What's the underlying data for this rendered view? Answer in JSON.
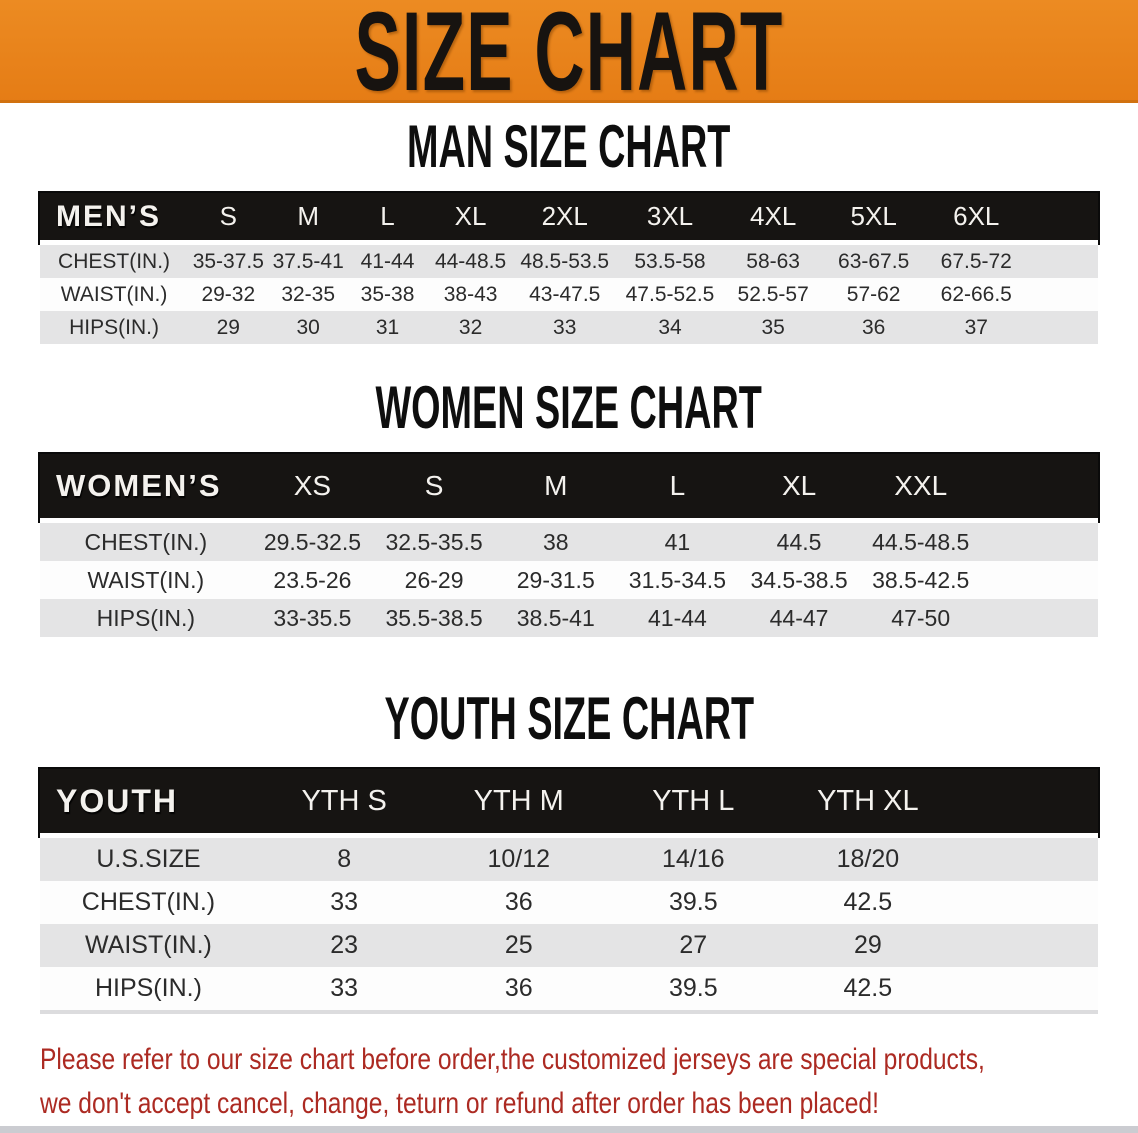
{
  "banner": {
    "title": "SIZE CHART"
  },
  "colors": {
    "banner_orange": "#E8831E",
    "header_bar_black": "#161412",
    "row_stripe_gray": "#E4E4E5",
    "note_red": "#AC2A22"
  },
  "sections": [
    {
      "heading": "MAN SIZE CHART",
      "table": {
        "header": [
          "MEN’S",
          "S",
          "M",
          "L",
          "XL",
          "2XL",
          "3XL",
          "4XL",
          "5XL",
          "6XL"
        ],
        "rows": [
          {
            "label": "CHEST(IN.)",
            "values": [
              "35-37.5",
              "37.5-41",
              "41-44",
              "44-48.5",
              "48.5-53.5",
              "53.5-58",
              "58-63",
              "63-67.5",
              "67.5-72"
            ]
          },
          {
            "label": "WAIST(IN.)",
            "values": [
              "29-32",
              "32-35",
              "35-38",
              "38-43",
              "43-47.5",
              "47.5-52.5",
              "52.5-57",
              "57-62",
              "62-66.5"
            ]
          },
          {
            "label": "HIPS(IN.)",
            "values": [
              "29",
              "30",
              "31",
              "32",
              "33",
              "34",
              "35",
              "36",
              "37"
            ]
          }
        ]
      }
    },
    {
      "heading": "WOMEN SIZE CHART",
      "table": {
        "header": [
          "WOMEN’S",
          "XS",
          "S",
          "M",
          "L",
          "XL",
          "XXL"
        ],
        "rows": [
          {
            "label": "CHEST(IN.)",
            "values": [
              "29.5-32.5",
              "32.5-35.5",
              "38",
              "41",
              "44.5",
              "44.5-48.5"
            ]
          },
          {
            "label": "WAIST(IN.)",
            "values": [
              "23.5-26",
              "26-29",
              "29-31.5",
              "31.5-34.5",
              "34.5-38.5",
              "38.5-42.5"
            ]
          },
          {
            "label": "HIPS(IN.)",
            "values": [
              "33-35.5",
              "35.5-38.5",
              "38.5-41",
              "41-44",
              "44-47",
              "47-50"
            ]
          }
        ]
      }
    },
    {
      "heading": "YOUTH SIZE CHART",
      "table": {
        "header": [
          "YOUTH",
          "YTH S",
          "YTH M",
          "YTH L",
          "YTH XL"
        ],
        "rows": [
          {
            "label": "U.S.SIZE",
            "values": [
              "8",
              "10/12",
              "14/16",
              "18/20"
            ]
          },
          {
            "label": "CHEST(IN.)",
            "values": [
              "33",
              "36",
              "39.5",
              "42.5"
            ]
          },
          {
            "label": "WAIST(IN.)",
            "values": [
              "23",
              "25",
              "27",
              "29"
            ]
          },
          {
            "label": "HIPS(IN.)",
            "values": [
              "33",
              "36",
              "39.5",
              "42.5"
            ]
          }
        ]
      }
    }
  ],
  "footer_note": {
    "lines": [
      "Please refer to our size chart before order,the customized jerseys are special products,",
      "we don't accept cancel, change, teturn or refund after order has been placed!"
    ]
  }
}
